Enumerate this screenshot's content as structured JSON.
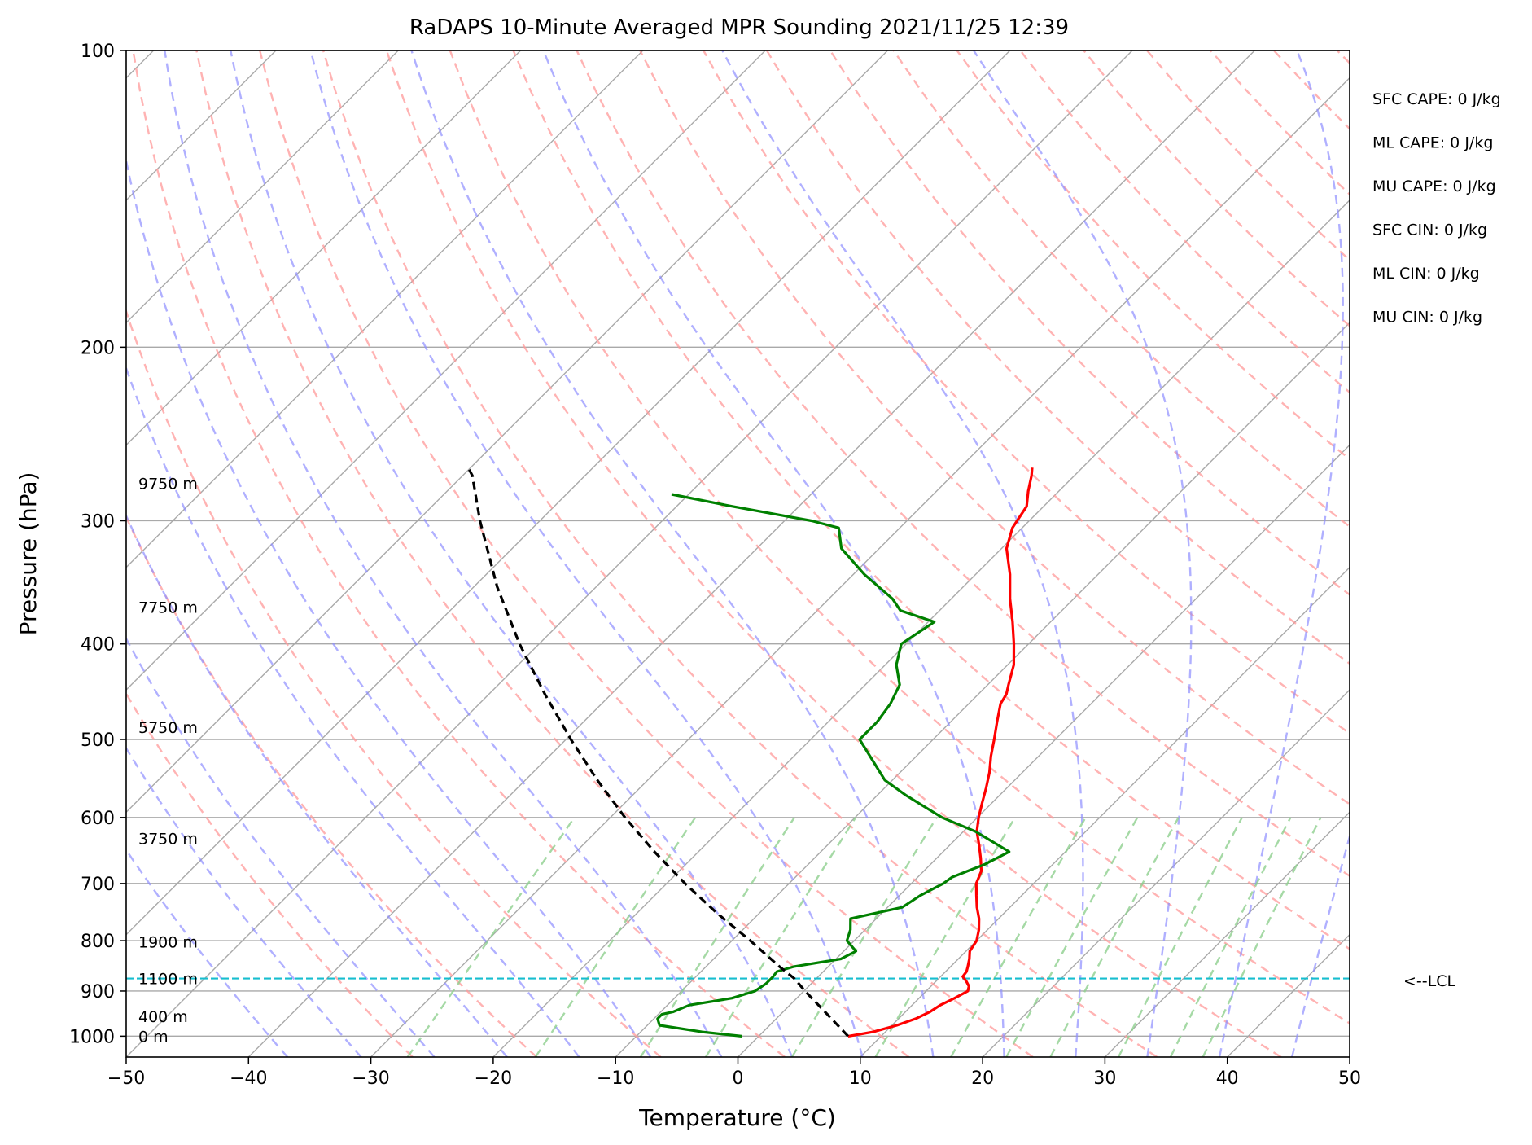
{
  "chart_data": {
    "type": "line",
    "subtype": "skew-T log-P diagram",
    "title": "RaDAPS 10-Minute Averaged MPR Sounding 2021/11/25 12:39",
    "xlabel": "Temperature (°C)",
    "ylabel": "Pressure (hPa)",
    "xlim": [
      -50,
      50
    ],
    "ylim": [
      1050,
      100
    ],
    "y_scale": "log",
    "x_ticks": [
      "−50",
      "−40",
      "−30",
      "−20",
      "−10",
      "0",
      "10",
      "20",
      "30",
      "40",
      "50"
    ],
    "x_tick_values": [
      -50,
      -40,
      -30,
      -20,
      -10,
      0,
      10,
      20,
      30,
      40,
      50
    ],
    "y_ticks": [
      "100",
      "200",
      "300",
      "400",
      "500",
      "600",
      "700",
      "800",
      "900",
      "1000"
    ],
    "y_tick_values": [
      100,
      200,
      300,
      400,
      500,
      600,
      700,
      800,
      900,
      1000
    ],
    "grid": true,
    "colors": {
      "temperature": "#ff0000",
      "dewpoint": "#008000",
      "parcel": "#000000",
      "lcl": "#17becf",
      "dry_adiabats": "#ff9a9a",
      "moist_adiabats": "#8f8fff",
      "mixing_ratio": "#8fcf8f",
      "isotherms": "#a9a9a9"
    },
    "series": [
      {
        "key": "temperature",
        "pressure": [
          1000,
          990,
          975,
          960,
          945,
          930,
          915,
          900,
          890,
          880,
          870,
          860,
          850,
          835,
          820,
          800,
          780,
          760,
          740,
          720,
          700,
          680,
          660,
          640,
          620,
          600,
          580,
          560,
          540,
          520,
          500,
          480,
          460,
          450,
          440,
          420,
          400,
          380,
          360,
          340,
          320,
          305,
          290,
          280,
          270,
          265
        ],
        "values": [
          7.3,
          9.0,
          10.4,
          11.4,
          12.0,
          12.3,
          12.9,
          13.4,
          13.1,
          12.5,
          11.8,
          11.7,
          11.4,
          10.9,
          10.3,
          10.0,
          9.3,
          8.4,
          7.3,
          6.3,
          5.3,
          4.7,
          3.6,
          2.4,
          1.1,
          0.1,
          -0.8,
          -1.7,
          -2.7,
          -3.9,
          -5.0,
          -6.2,
          -7.4,
          -7.7,
          -8.3,
          -9.5,
          -11.2,
          -13.1,
          -15.2,
          -17.2,
          -19.6,
          -20.8,
          -21.4,
          -22.5,
          -23.5,
          -24.1
        ]
      },
      {
        "key": "dewpoint",
        "pressure": [
          1000,
          990,
          975,
          960,
          950,
          945,
          930,
          915,
          900,
          885,
          870,
          860,
          850,
          835,
          820,
          800,
          780,
          760,
          740,
          720,
          700,
          690,
          670,
          650,
          620,
          600,
          570,
          550,
          500,
          480,
          460,
          440,
          420,
          400,
          380,
          370,
          360,
          340,
          320,
          305,
          300,
          290,
          282
        ],
        "values": [
          -1.4,
          -5.0,
          -9.0,
          -9.7,
          -9.7,
          -9.0,
          -8.2,
          -5.3,
          -4.0,
          -3.7,
          -3.7,
          -3.8,
          -2.8,
          0.4,
          1.0,
          -0.6,
          -1.2,
          -2.1,
          1.2,
          1.7,
          2.6,
          2.8,
          4.4,
          5.4,
          1.0,
          -2.9,
          -7.6,
          -10.6,
          -16.0,
          -16.0,
          -16.4,
          -17.2,
          -19.1,
          -20.4,
          -19.5,
          -23.2,
          -24.8,
          -29.1,
          -33.1,
          -35.0,
          -37.8,
          -45.5,
          -51.4
        ]
      },
      {
        "key": "parcel",
        "pressure": [
          1000,
          950,
          900,
          874,
          850,
          800,
          750,
          700,
          650,
          600,
          550,
          500,
          450,
          400,
          350,
          300,
          270,
          265
        ],
        "values": [
          7.3,
          3.8,
          0.1,
          -1.8,
          -4.0,
          -8.5,
          -13.5,
          -18.5,
          -23.6,
          -28.8,
          -34.1,
          -39.6,
          -45.4,
          -51.6,
          -58.1,
          -64.9,
          -69.2,
          -70.2
        ]
      }
    ],
    "lcl_pressure": 874,
    "lcl_label": "<--LCL",
    "height_labels": [
      {
        "text": "0 m",
        "pressure": 1000
      },
      {
        "text": "400 m",
        "pressure": 955
      },
      {
        "text": "1100 m",
        "pressure": 874
      },
      {
        "text": "1900 m",
        "pressure": 802
      },
      {
        "text": "3750 m",
        "pressure": 630
      },
      {
        "text": "5750 m",
        "pressure": 486
      },
      {
        "text": "7750 m",
        "pressure": 367
      },
      {
        "text": "9750 m",
        "pressure": 275
      }
    ],
    "indices": [
      {
        "label": "SFC CAPE: 0 J/kg"
      },
      {
        "label": "ML CAPE: 0 J/kg"
      },
      {
        "label": "MU CAPE: 0 J/kg"
      },
      {
        "label": "SFC CIN: 0 J/kg"
      },
      {
        "label": "ML CIN: 0 J/kg"
      },
      {
        "label": "MU CIN: 0 J/kg"
      }
    ]
  }
}
